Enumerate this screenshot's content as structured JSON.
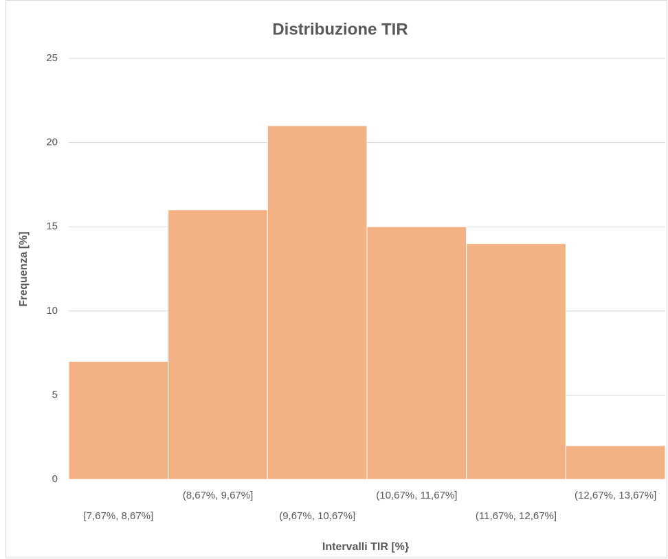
{
  "chart_data": {
    "type": "bar",
    "title": "Distribuzione TIR",
    "x_label": "Intervalli TIR [%}",
    "y_label": "Frequenza [%]",
    "categories": [
      "[7,67%, 8,67%]",
      "(8,67%, 9,67%]",
      "(9,67%, 10,67%]",
      "(10,67%, 11,67%]",
      "(11,67%, 12,67%]",
      "(12,67%, 13,67%]"
    ],
    "values": [
      7,
      16,
      21,
      15,
      14,
      2
    ],
    "color": "#f4b183",
    "ylim": [
      0,
      25
    ],
    "yticks": [
      0,
      5,
      10,
      15,
      20,
      25
    ],
    "grid": true
  }
}
